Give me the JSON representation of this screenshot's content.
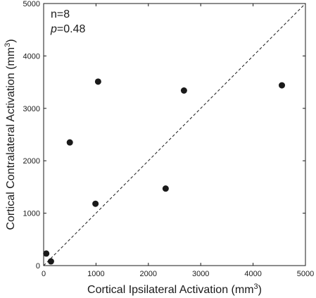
{
  "chart_data": {
    "type": "scatter",
    "title": "",
    "xlabel": {
      "main": "Cortical Ipsilateral Activation (mm",
      "sup": "3",
      "tail": ")"
    },
    "ylabel": {
      "main": "Cortical Contralateral Activation (mm",
      "sup": "3",
      "tail": ")"
    },
    "xlim": [
      0,
      5000
    ],
    "ylim": [
      0,
      5000
    ],
    "xticks": [
      0,
      1000,
      2000,
      3000,
      4000,
      5000
    ],
    "yticks": [
      0,
      1000,
      2000,
      3000,
      4000,
      5000
    ],
    "xtick_labels": [
      "0",
      "1000",
      "2000",
      "3000",
      "4000",
      "5000"
    ],
    "ytick_labels": [
      "0",
      "1000",
      "2000",
      "3000",
      "4000",
      "5000"
    ],
    "grid": false,
    "reference_line": {
      "style": "dashed",
      "from": [
        0,
        0
      ],
      "to": [
        5000,
        5000
      ]
    },
    "annotations": {
      "n": "n=8",
      "p_symbol": "p",
      "p_value": "=0.48"
    },
    "points": [
      {
        "x": 50,
        "y": 230
      },
      {
        "x": 140,
        "y": 80
      },
      {
        "x": 500,
        "y": 2350
      },
      {
        "x": 990,
        "y": 1180
      },
      {
        "x": 1040,
        "y": 3510
      },
      {
        "x": 2330,
        "y": 1470
      },
      {
        "x": 2680,
        "y": 3340
      },
      {
        "x": 4550,
        "y": 3440
      }
    ],
    "marker_color": "#1a1a1a"
  }
}
